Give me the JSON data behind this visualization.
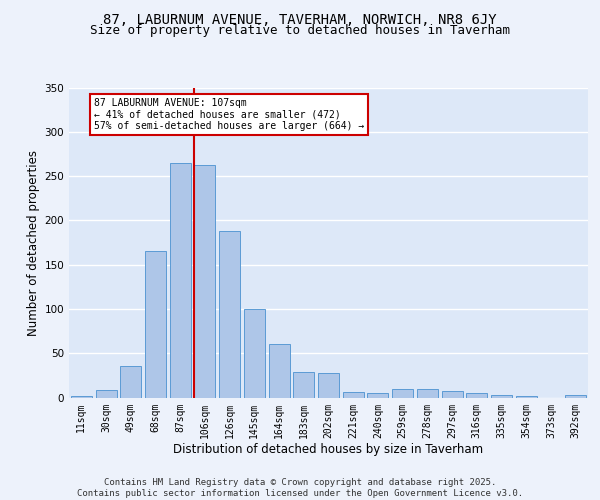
{
  "title1": "87, LABURNUM AVENUE, TAVERHAM, NORWICH, NR8 6JY",
  "title2": "Size of property relative to detached houses in Taverham",
  "xlabel": "Distribution of detached houses by size in Taverham",
  "ylabel": "Number of detached properties",
  "categories": [
    "11sqm",
    "30sqm",
    "49sqm",
    "68sqm",
    "87sqm",
    "106sqm",
    "126sqm",
    "145sqm",
    "164sqm",
    "183sqm",
    "202sqm",
    "221sqm",
    "240sqm",
    "259sqm",
    "278sqm",
    "297sqm",
    "316sqm",
    "335sqm",
    "354sqm",
    "373sqm",
    "392sqm"
  ],
  "values": [
    2,
    9,
    36,
    165,
    265,
    262,
    188,
    100,
    60,
    29,
    28,
    6,
    5,
    10,
    10,
    7,
    5,
    3,
    2,
    0,
    3
  ],
  "bar_color": "#aec6e8",
  "bar_edge_color": "#5b9bd5",
  "vline_color": "#cc0000",
  "vline_x": 4.575,
  "annotation_text": "87 LABURNUM AVENUE: 107sqm\n← 41% of detached houses are smaller (472)\n57% of semi-detached houses are larger (664) →",
  "annotation_box_color": "#ffffff",
  "annotation_box_edge_color": "#cc0000",
  "ylim": [
    0,
    350
  ],
  "yticks": [
    0,
    50,
    100,
    150,
    200,
    250,
    300,
    350
  ],
  "footer_text": "Contains HM Land Registry data © Crown copyright and database right 2025.\nContains public sector information licensed under the Open Government Licence v3.0.",
  "background_color": "#dde8f8",
  "grid_color": "#ffffff",
  "fig_bg_color": "#edf2fb",
  "title_fontsize": 10,
  "subtitle_fontsize": 9,
  "axis_label_fontsize": 8.5,
  "tick_fontsize": 7,
  "footer_fontsize": 6.5
}
